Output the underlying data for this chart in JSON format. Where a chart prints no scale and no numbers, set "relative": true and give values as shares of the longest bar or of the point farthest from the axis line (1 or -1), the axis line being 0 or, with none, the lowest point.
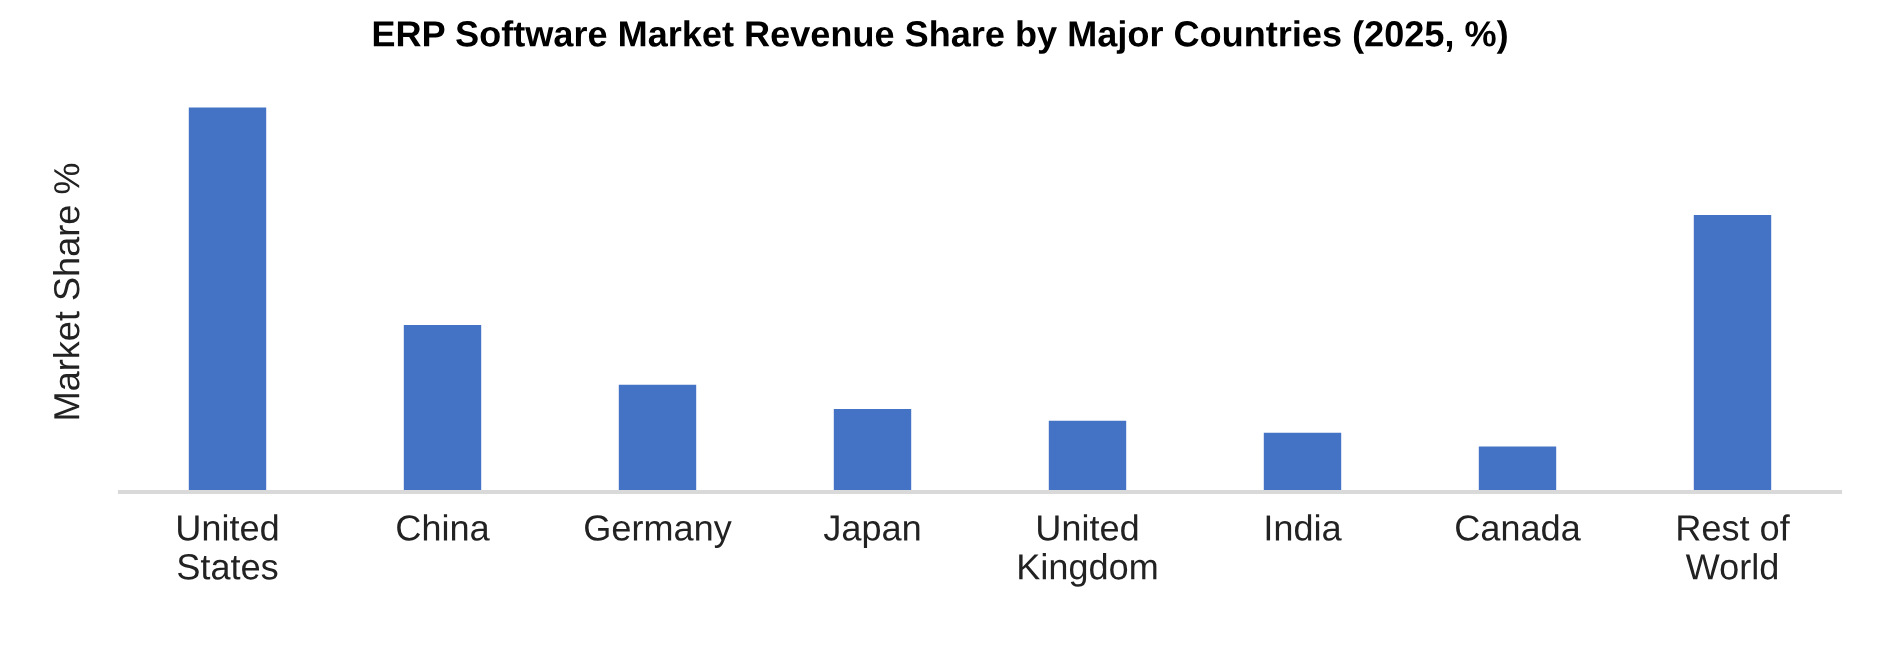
{
  "chart_data": {
    "type": "bar",
    "title": "ERP Software Market Revenue Share by Major Countries (2025, %)",
    "ylabel": "Market Share %",
    "categories": [
      "United\nStates",
      "China",
      "Germany",
      "Japan",
      "United\nKingdom",
      "India",
      "Canada",
      "Rest of\nWorld"
    ],
    "values": [
      1,
      0.434,
      0.279,
      0.216,
      0.185,
      0.154,
      0.118,
      0.72
    ],
    "color": "#4472c4",
    "relative": true,
    "grid": false,
    "legend": false
  }
}
